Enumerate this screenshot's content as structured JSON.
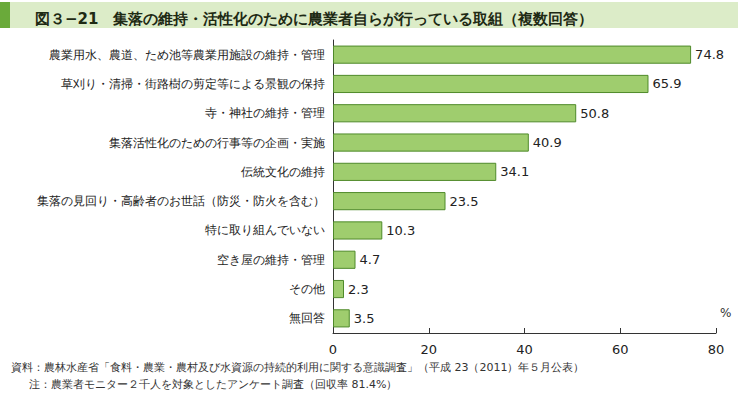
{
  "chart_data": {
    "type": "bar",
    "orientation": "horizontal",
    "title": "図３−21　集落の維持・活性化のために農業者自らが行っている取組（複数回答）",
    "categories": [
      "農業用水、農道、ため池等農業用施設の維持・管理",
      "草刈り・清掃・街路樹の剪定等による景観の保持",
      "寺・神社の維持・管理",
      "集落活性化のための行事等の企画・実施",
      "伝統文化の維持",
      "集落の見回り・高齢者のお世話（防災・防火を含む）",
      "特に取り組んでいない",
      "空き屋の維持・管理",
      "その他",
      "無回答"
    ],
    "values": [
      74.8,
      65.9,
      50.8,
      40.9,
      34.1,
      23.5,
      10.3,
      4.7,
      2.3,
      3.5
    ],
    "color": "#9fcd6e",
    "xlabel": "%",
    "xlim": [
      0,
      80
    ],
    "xticks": [
      0,
      20,
      40,
      60,
      80
    ],
    "grid": false,
    "data_labels": true,
    "source": "資料：農林水産省「食料・農業・農村及び水資源の持続的利用に関する意識調査」（平成 23（2011）年５月公表）",
    "note": "注：農業者モニター２千人を対象としたアンケート調査（回収率 81.4%）"
  }
}
